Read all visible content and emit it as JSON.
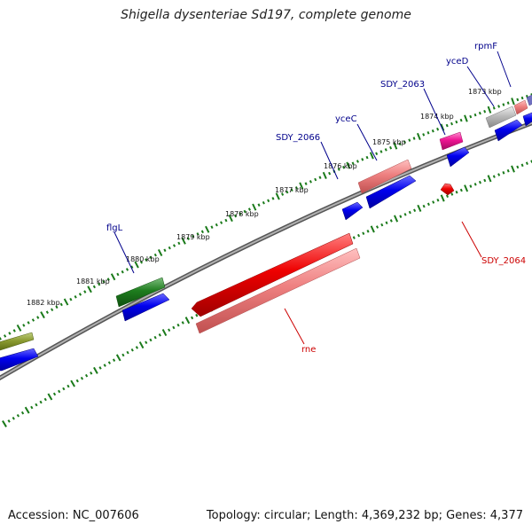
{
  "title": "Shigella dysenteriae Sd197, complete genome",
  "footer": {
    "accession": "Accession: NC_007606",
    "stats": "Topology: circular; Length: 4,369,232 bp; Genes: 4,377"
  },
  "ruler": {
    "ticks": [
      {
        "label": "1873 kbp"
      },
      {
        "label": "1874 kbp"
      },
      {
        "label": "1875 kbp"
      },
      {
        "label": "1876 kbp"
      },
      {
        "label": "1877 kbp"
      },
      {
        "label": "1878 kbp"
      },
      {
        "label": "1879 kbp"
      },
      {
        "label": "1880 kbp"
      },
      {
        "label": "1881 kbp"
      },
      {
        "label": "1882 kbp"
      }
    ]
  },
  "genes": [
    {
      "name": "rpmF",
      "color": "#00008b"
    },
    {
      "name": "yceD",
      "color": "#00008b"
    },
    {
      "name": "SDY_2063",
      "color": "#00008b"
    },
    {
      "name": "yceC",
      "color": "#00008b"
    },
    {
      "name": "SDY_2066",
      "color": "#00008b"
    },
    {
      "name": "flgL",
      "color": "#00008b"
    },
    {
      "name": "SDY_2064",
      "color": "#cc0000"
    },
    {
      "name": "rne",
      "color": "#cc0000"
    }
  ],
  "colors": {
    "backbone": "#808080",
    "ticks": "#1a7a1a",
    "cds_blue": "#0000ee",
    "cds_green": "#1e7d1e",
    "cds_red": "#ee0000",
    "cds_pink": "#ee8080",
    "cds_magenta": "#ee1493",
    "cds_gray": "#bbbbbb",
    "cds_olive": "#8a9a30"
  }
}
